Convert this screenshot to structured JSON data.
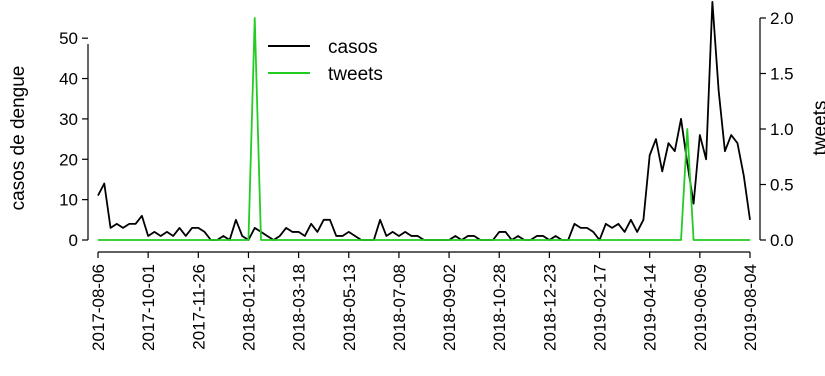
{
  "chart_data": {
    "type": "line",
    "xlabel": "",
    "ylabel_left": "casos de dengue",
    "ylabel_right": "tweets",
    "x_start": "2017-08-06",
    "x_end": "2019-08-04",
    "x_interval_days": 7,
    "x_tick_labels": [
      "2017-08-06",
      "2017-10-01",
      "2017-11-26",
      "2018-01-21",
      "2018-03-18",
      "2018-05-13",
      "2018-07-08",
      "2018-09-02",
      "2018-10-28",
      "2018-12-23",
      "2019-02-17",
      "2019-04-14",
      "2019-06-09",
      "2019-08-04"
    ],
    "ylim_left": [
      0,
      55
    ],
    "yticks_left": [
      0,
      10,
      20,
      30,
      40,
      50
    ],
    "ylim_right": [
      0,
      2.0
    ],
    "yticks_right": [
      "0.0",
      "0.5",
      "1.0",
      "1.5",
      "2.0"
    ],
    "grid": false,
    "legend": {
      "position": "top-center",
      "entries": [
        "casos",
        "tweets"
      ]
    },
    "series": [
      {
        "name": "casos",
        "color": "#000000",
        "axis": "left",
        "values": [
          11,
          14,
          3,
          4,
          3,
          4,
          4,
          6,
          1,
          2,
          1,
          2,
          1,
          3,
          1,
          3,
          3,
          2,
          0,
          0,
          1,
          0,
          5,
          1,
          0,
          3,
          2,
          1,
          0,
          1,
          3,
          2,
          2,
          1,
          4,
          2,
          5,
          5,
          1,
          1,
          2,
          1,
          0,
          0,
          0,
          5,
          1,
          2,
          1,
          2,
          1,
          1,
          0,
          0,
          0,
          0,
          0,
          1,
          0,
          1,
          1,
          0,
          0,
          0,
          2,
          2,
          0,
          1,
          0,
          0,
          1,
          1,
          0,
          1,
          0,
          0,
          4,
          3,
          3,
          2,
          0,
          4,
          3,
          4,
          2,
          5,
          2,
          5,
          21,
          25,
          17,
          24,
          22,
          30,
          19,
          9,
          26,
          20,
          59,
          37,
          22,
          26,
          24,
          16,
          5
        ]
      },
      {
        "name": "tweets",
        "color": "#22cc22",
        "axis": "right",
        "values": [
          0,
          0,
          0,
          0,
          0,
          0,
          0,
          0,
          0,
          0,
          0,
          0,
          0,
          0,
          0,
          0,
          0,
          0,
          0,
          0,
          0,
          0,
          0,
          0,
          0,
          2,
          0,
          0,
          0,
          0,
          0,
          0,
          0,
          0,
          0,
          0,
          0,
          0,
          0,
          0,
          0,
          0,
          0,
          0,
          0,
          0,
          0,
          0,
          0,
          0,
          0,
          0,
          0,
          0,
          0,
          0,
          0,
          0,
          0,
          0,
          0,
          0,
          0,
          0,
          0,
          0,
          0,
          0,
          0,
          0,
          0,
          0,
          0,
          0,
          0,
          0,
          0,
          0,
          0,
          0,
          0,
          0,
          0,
          0,
          0,
          0,
          0,
          0,
          0,
          0,
          0,
          0,
          0,
          0,
          1,
          0,
          0,
          0,
          0,
          0,
          0,
          0,
          0,
          0,
          0
        ]
      }
    ]
  }
}
